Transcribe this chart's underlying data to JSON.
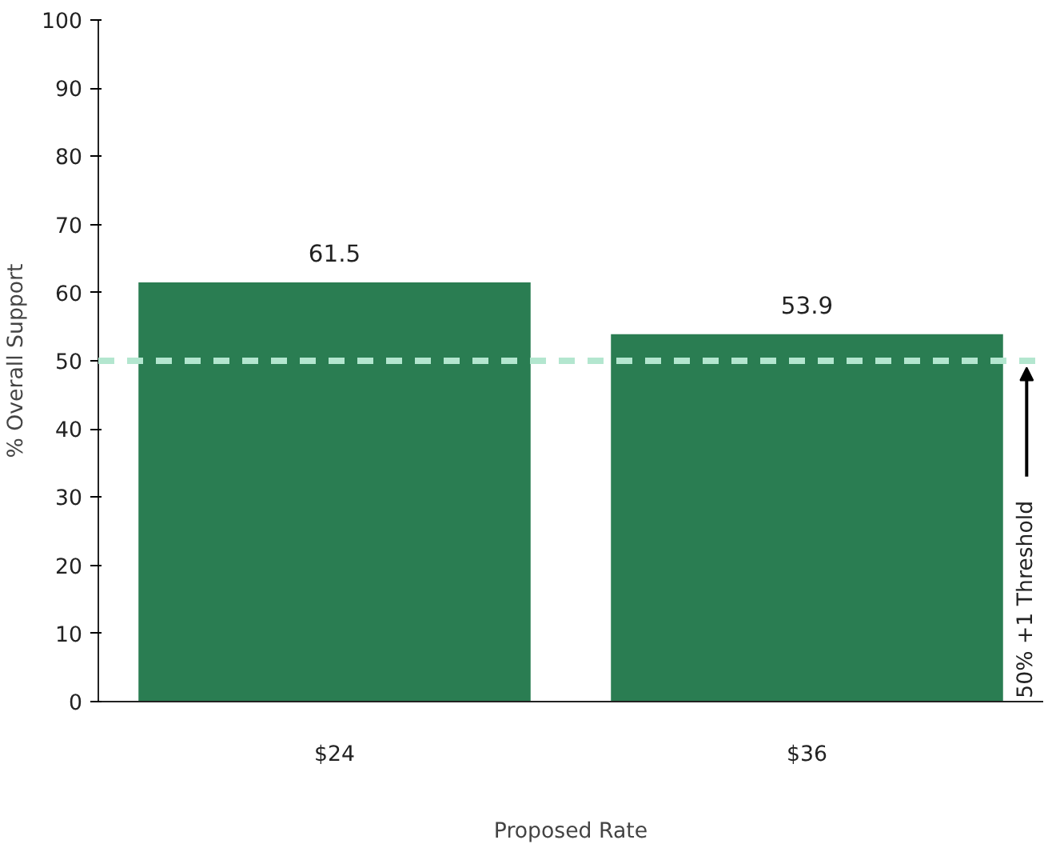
{
  "chart_data": {
    "type": "bar",
    "categories": [
      "$24",
      "$36"
    ],
    "values": [
      61.5,
      53.9
    ],
    "color": "#2a7d52",
    "xlabel": "Proposed Rate",
    "ylabel": "% Overall Support",
    "ylim": [
      0,
      100
    ],
    "yticks": [
      0,
      10,
      20,
      30,
      40,
      50,
      60,
      70,
      80,
      90,
      100
    ],
    "grid": false,
    "data_labels": true,
    "ref_lines": [
      {
        "axis": "y",
        "value": 50,
        "label": "50% +1 Threshold",
        "color": "#b3e6cf",
        "line_style": "dashed"
      }
    ]
  }
}
